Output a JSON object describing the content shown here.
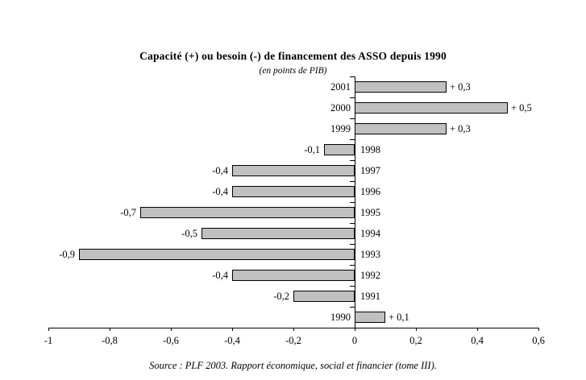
{
  "chart_data": {
    "type": "bar",
    "orientation": "horizontal",
    "title": "Capacité (+) ou besoin (-) de financement des ASSO depuis 1990",
    "subtitle": "(en points de PIB)",
    "categories": [
      "2001",
      "2000",
      "1999",
      "1998",
      "1997",
      "1996",
      "1995",
      "1994",
      "1993",
      "1992",
      "1991",
      "1990"
    ],
    "values": [
      0.3,
      0.5,
      0.3,
      -0.1,
      -0.4,
      -0.4,
      -0.7,
      -0.5,
      -0.9,
      -0.4,
      -0.2,
      0.1
    ],
    "value_labels": [
      "+ 0,3",
      "+ 0,5",
      "+ 0,3",
      "-0,1",
      "-0,4",
      "-0,4",
      "-0,7",
      "-0,5",
      "-0,9",
      "-0,4",
      "-0,2",
      "+ 0,1"
    ],
    "x_ticks": [
      -1,
      -0.8,
      -0.6,
      -0.4,
      -0.2,
      0,
      0.2,
      0.4,
      0.6
    ],
    "x_tick_labels": [
      "-1",
      "-0,8",
      "-0,6",
      "-0,4",
      "-0,2",
      "0",
      "0,2",
      "0,4",
      "0,6"
    ],
    "xlim": [
      -1,
      0.6
    ],
    "grid": false,
    "legend": "none",
    "bar_color": "#c0c0c0",
    "bar_border": "#000000",
    "axis_color": "#000000"
  },
  "source_line": "Source : PLF 2003. Rapport économique, social et financier (tome III)."
}
